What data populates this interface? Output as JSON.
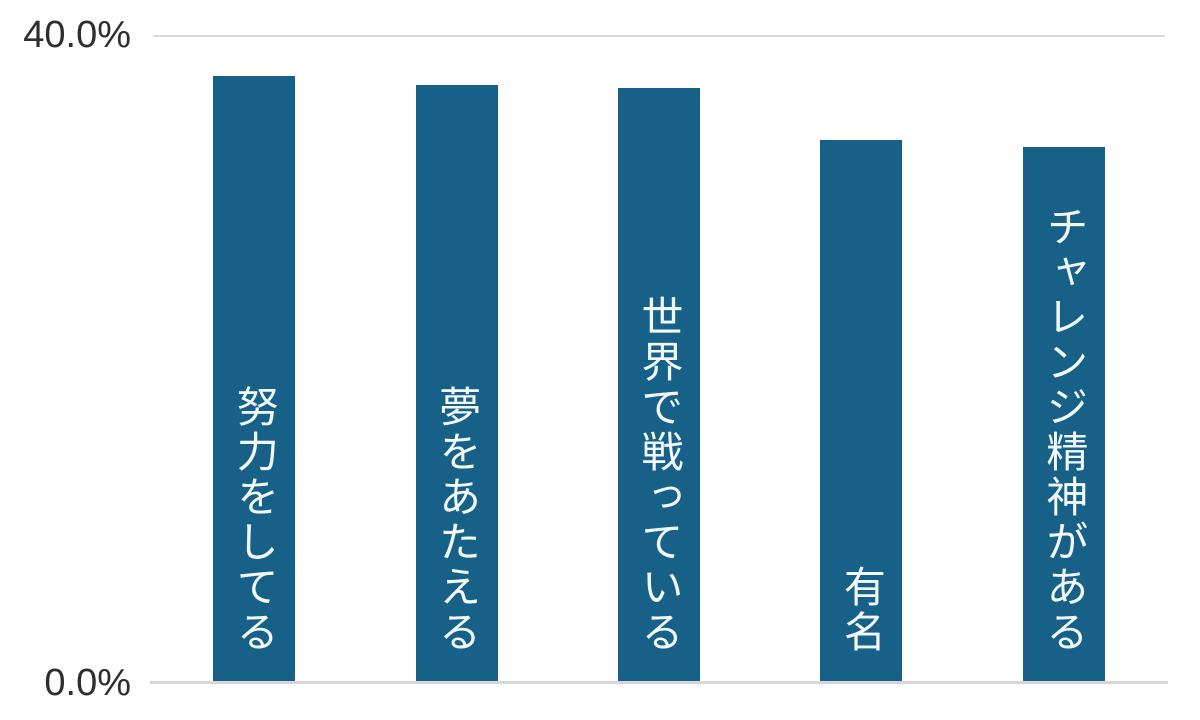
{
  "axis": {
    "y_top_label": "40.0%",
    "y_bottom_label": "0.0%"
  },
  "chart_data": {
    "type": "bar",
    "title": "",
    "xlabel": "",
    "ylabel": "",
    "categories": [
      "努力をしてる",
      "夢をあたえる",
      "世界で戦っている",
      "有名",
      "チャレンジ精神がある"
    ],
    "values": [
      37.5,
      36.9,
      36.7,
      33.5,
      33.1
    ],
    "value_unit": "%",
    "ylim": [
      0,
      40
    ],
    "yticks": [
      "0.0%",
      "40.0%"
    ],
    "grid": "horizontal-top-and-baseline-only",
    "legend": "none",
    "bar_color": "#176088",
    "bar_label_color": "#f2f9fc",
    "bar_label_position": "inside-bottom-vertical",
    "tick_label_color": "#2e2e2e",
    "gridline_color": "#d9d9d9"
  }
}
